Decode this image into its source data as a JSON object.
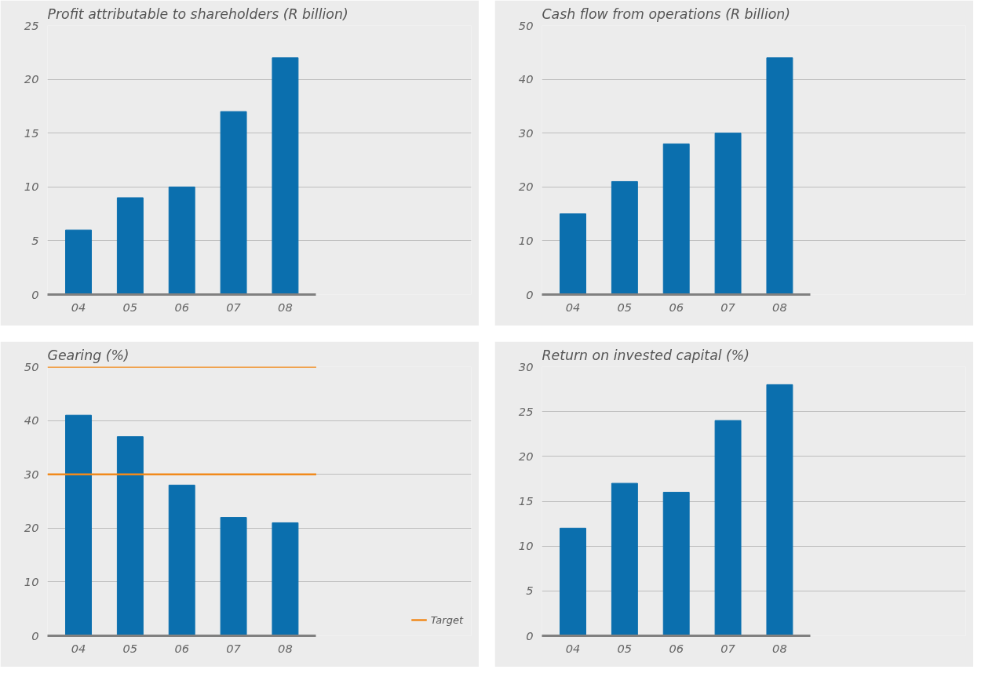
{
  "chart_data": [
    {
      "type": "bar",
      "title": "Profit attributable to shareholders (R billion)",
      "categories": [
        "04",
        "05",
        "06",
        "07",
        "08"
      ],
      "values": [
        6,
        9,
        10,
        17,
        22
      ],
      "color": "#0b6fae",
      "ylim": [
        0,
        25
      ],
      "yticks": [
        0,
        5,
        10,
        15,
        20,
        25
      ],
      "grid": "y"
    },
    {
      "type": "bar",
      "title": "Cash flow from operations (R billion)",
      "categories": [
        "04",
        "05",
        "06",
        "07",
        "08"
      ],
      "values": [
        15,
        21,
        28,
        30,
        44
      ],
      "color": "#0b6fae",
      "ylim": [
        0,
        50
      ],
      "yticks": [
        0,
        10,
        20,
        30,
        40,
        50
      ],
      "grid": "y"
    },
    {
      "type": "bar",
      "title": "Gearing (%)",
      "categories": [
        "04",
        "05",
        "06",
        "07",
        "08"
      ],
      "values": [
        41,
        37,
        28,
        22,
        21
      ],
      "color": "#0b6fae",
      "ylim": [
        0,
        50
      ],
      "yticks": [
        0,
        10,
        20,
        30,
        40,
        50
      ],
      "grid": "y",
      "legend": "bottom right",
      "ref_lines": [
        {
          "axis": "y",
          "value": 30,
          "label": "Target",
          "color": "#f18a1c"
        },
        {
          "axis": "y",
          "value": 50,
          "label": null,
          "color": "#f18a1c"
        }
      ]
    },
    {
      "type": "bar",
      "title": "Return on invested capital (%)",
      "categories": [
        "04",
        "05",
        "06",
        "07",
        "08"
      ],
      "values": [
        12,
        17,
        16,
        24,
        28
      ],
      "color": "#0b6fae",
      "ylim": [
        0,
        30
      ],
      "yticks": [
        0,
        5,
        10,
        15,
        20,
        25,
        30
      ],
      "grid": "y"
    }
  ]
}
